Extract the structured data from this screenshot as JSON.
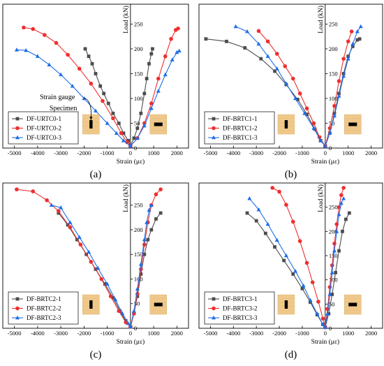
{
  "colors": {
    "series1": "#4d4d4d",
    "series2": "#ef2f2f",
    "series3": "#1e6ee8",
    "specimen_fill": "#efc98b",
    "specimen_gauge": "#000000"
  },
  "chart_data": [
    {
      "type": "line",
      "panel_label": "(a)",
      "xlabel": "Strain (με)",
      "ylabel": "Load (kN)",
      "xlim": [
        -5500,
        2500
      ],
      "ylim": [
        0,
        290
      ],
      "xticks": [
        "-5000",
        "-4000",
        "-3000",
        "-2000",
        "-1000",
        "0",
        "1000",
        "2000"
      ],
      "yticks": [
        "0",
        "50",
        "100",
        "150",
        "200",
        "250"
      ],
      "legend_position": "bottom-left",
      "annotations": [
        "Strain gauge",
        "Specimen"
      ],
      "series": [
        {
          "name": "DF-URTC0-1",
          "marker": "square",
          "left": [
            [
              -1950,
              200
            ],
            [
              -1800,
              185
            ],
            [
              -1650,
              170
            ],
            [
              -1500,
              150
            ],
            [
              -1300,
              125
            ],
            [
              -1150,
              110
            ],
            [
              -950,
              90
            ],
            [
              -750,
              70
            ],
            [
              -500,
              50
            ],
            [
              -300,
              30
            ],
            [
              -100,
              15
            ],
            [
              0,
              5
            ]
          ],
          "right": [
            [
              0,
              5
            ],
            [
              150,
              20
            ],
            [
              300,
              40
            ],
            [
              450,
              70
            ],
            [
              600,
              110
            ],
            [
              700,
              140
            ],
            [
              800,
              170
            ],
            [
              900,
              190
            ],
            [
              950,
              200
            ]
          ]
        },
        {
          "name": "DF-URTC0-2",
          "marker": "circle",
          "left": [
            [
              -4600,
              243
            ],
            [
              -4200,
              240
            ],
            [
              -3700,
              228
            ],
            [
              -3200,
              212
            ],
            [
              -2700,
              188
            ],
            [
              -2200,
              160
            ],
            [
              -1700,
              130
            ],
            [
              -1200,
              95
            ],
            [
              -750,
              60
            ],
            [
              -400,
              30
            ],
            [
              -150,
              12
            ],
            [
              0,
              4
            ]
          ],
          "right": [
            [
              0,
              4
            ],
            [
              300,
              20
            ],
            [
              600,
              50
            ],
            [
              900,
              90
            ],
            [
              1200,
              140
            ],
            [
              1500,
              185
            ],
            [
              1750,
              220
            ],
            [
              1950,
              238
            ],
            [
              2050,
              241
            ]
          ]
        },
        {
          "name": "DF-URTC0-3",
          "marker": "triangle",
          "left": [
            [
              -4900,
              198
            ],
            [
              -4500,
              197
            ],
            [
              -4000,
              185
            ],
            [
              -3500,
              168
            ],
            [
              -3000,
              148
            ],
            [
              -2500,
              125
            ],
            [
              -2000,
              100
            ],
            [
              -1500,
              75
            ],
            [
              -1000,
              50
            ],
            [
              -600,
              30
            ],
            [
              -300,
              15
            ],
            [
              0,
              4
            ]
          ],
          "right": [
            [
              0,
              4
            ],
            [
              300,
              20
            ],
            [
              600,
              45
            ],
            [
              900,
              80
            ],
            [
              1200,
              115
            ],
            [
              1500,
              148
            ],
            [
              1800,
              178
            ],
            [
              2000,
              193
            ],
            [
              2100,
              196
            ]
          ]
        }
      ]
    },
    {
      "type": "line",
      "panel_label": "(b)",
      "xlabel": "Strain (με)",
      "ylabel": "Load (kN)",
      "xlim": [
        -5500,
        2500
      ],
      "ylim": [
        0,
        290
      ],
      "xticks": [
        "-5000",
        "-4000",
        "-3000",
        "-2000",
        "-1000",
        "0",
        "1000",
        "2000"
      ],
      "yticks": [
        "0",
        "50",
        "100",
        "150",
        "200",
        "250"
      ],
      "legend_position": "bottom-left",
      "series": [
        {
          "name": "DF-BRTC1-1",
          "marker": "square",
          "left": [
            [
              -5200,
              220
            ],
            [
              -4300,
              215
            ],
            [
              -3500,
              202
            ],
            [
              -2800,
              180
            ],
            [
              -2200,
              155
            ],
            [
              -1700,
              128
            ],
            [
              -1200,
              98
            ],
            [
              -800,
              68
            ],
            [
              -450,
              38
            ],
            [
              -200,
              15
            ],
            [
              0,
              4
            ]
          ],
          "right": [
            [
              0,
              4
            ],
            [
              200,
              30
            ],
            [
              400,
              70
            ],
            [
              600,
              110
            ],
            [
              800,
              150
            ],
            [
              1000,
              185
            ],
            [
              1200,
              205
            ],
            [
              1400,
              218
            ],
            [
              1500,
              220
            ]
          ]
        },
        {
          "name": "DF-BRTC1-2",
          "marker": "circle",
          "left": [
            [
              -2900,
              236
            ],
            [
              -2500,
              215
            ],
            [
              -2100,
              190
            ],
            [
              -1750,
              165
            ],
            [
              -1400,
              140
            ],
            [
              -1100,
              110
            ],
            [
              -800,
              80
            ],
            [
              -500,
              50
            ],
            [
              -250,
              22
            ],
            [
              0,
              4
            ]
          ],
          "right": [
            [
              0,
              4
            ],
            [
              200,
              40
            ],
            [
              400,
              85
            ],
            [
              600,
              135
            ],
            [
              800,
              180
            ],
            [
              1000,
              215
            ],
            [
              1150,
              235
            ]
          ]
        },
        {
          "name": "DF-BRTC1-3",
          "marker": "triangle",
          "left": [
            [
              -3900,
              245
            ],
            [
              -3400,
              235
            ],
            [
              -2900,
              210
            ],
            [
              -2500,
              185
            ],
            [
              -2100,
              160
            ],
            [
              -1700,
              130
            ],
            [
              -1300,
              100
            ],
            [
              -900,
              70
            ],
            [
              -500,
              40
            ],
            [
              -200,
              15
            ],
            [
              0,
              4
            ]
          ],
          "right": [
            [
              0,
              4
            ],
            [
              200,
              30
            ],
            [
              400,
              65
            ],
            [
              600,
              105
            ],
            [
              800,
              145
            ],
            [
              1000,
              180
            ],
            [
              1200,
              210
            ],
            [
              1400,
              235
            ],
            [
              1550,
              245
            ]
          ]
        }
      ]
    },
    {
      "type": "line",
      "panel_label": "(c)",
      "xlabel": "Strain (με)",
      "ylabel": "Load (kN)",
      "xlim": [
        -5500,
        2500
      ],
      "ylim": [
        0,
        295
      ],
      "xticks": [
        "-5000",
        "-4000",
        "-3000",
        "-2000",
        "-1000",
        "0",
        "1000",
        "2000"
      ],
      "yticks": [
        "0",
        "50",
        "100",
        "150",
        "200",
        "250"
      ],
      "legend_position": "bottom-left",
      "series": [
        {
          "name": "DF-BRTC2-1",
          "marker": "square",
          "left": [
            [
              -3100,
              234
            ],
            [
              -2700,
              210
            ],
            [
              -2300,
              180
            ],
            [
              -1900,
              150
            ],
            [
              -1500,
              120
            ],
            [
              -1100,
              90
            ],
            [
              -750,
              62
            ],
            [
              -450,
              35
            ],
            [
              -200,
              15
            ],
            [
              0,
              3
            ]
          ],
          "right": [
            [
              0,
              3
            ],
            [
              150,
              30
            ],
            [
              300,
              65
            ],
            [
              450,
              110
            ],
            [
              600,
              150
            ],
            [
              750,
              180
            ],
            [
              900,
              200
            ],
            [
              1100,
              222
            ],
            [
              1300,
              234
            ]
          ]
        },
        {
          "name": "DF-BRTC2-2",
          "marker": "circle",
          "left": [
            [
              -4900,
              282
            ],
            [
              -4200,
              278
            ],
            [
              -3600,
              260
            ],
            [
              -3100,
              238
            ],
            [
              -2600,
              205
            ],
            [
              -2150,
              170
            ],
            [
              -1700,
              135
            ],
            [
              -1250,
              100
            ],
            [
              -850,
              65
            ],
            [
              -500,
              35
            ],
            [
              -200,
              12
            ],
            [
              0,
              3
            ]
          ],
          "right": [
            [
              0,
              3
            ],
            [
              150,
              30
            ],
            [
              300,
              70
            ],
            [
              450,
              120
            ],
            [
              600,
              170
            ],
            [
              750,
              215
            ],
            [
              900,
              250
            ],
            [
              1100,
              272
            ],
            [
              1300,
              282
            ]
          ]
        },
        {
          "name": "DF-BRTC2-3",
          "marker": "triangle",
          "left": [
            [
              -3400,
              250
            ],
            [
              -3000,
              245
            ],
            [
              -2600,
              215
            ],
            [
              -2200,
              185
            ],
            [
              -1800,
              155
            ],
            [
              -1400,
              122
            ],
            [
              -1000,
              90
            ],
            [
              -650,
              58
            ],
            [
              -350,
              30
            ],
            [
              -100,
              10
            ],
            [
              0,
              3
            ]
          ],
          "right": [
            [
              0,
              3
            ],
            [
              150,
              35
            ],
            [
              300,
              80
            ],
            [
              450,
              130
            ],
            [
              600,
              180
            ],
            [
              700,
              215
            ],
            [
              800,
              240
            ],
            [
              900,
              250
            ]
          ]
        }
      ]
    },
    {
      "type": "line",
      "panel_label": "(d)",
      "xlabel": "Strain (με)",
      "ylabel": "Load (kN)",
      "xlim": [
        -5500,
        2500
      ],
      "ylim": [
        0,
        300
      ],
      "xticks": [
        "-5000",
        "-4000",
        "-3000",
        "-2000",
        "-1000",
        "0",
        "1000",
        "2000"
      ],
      "yticks": [
        "0",
        "50",
        "100",
        "150",
        "200",
        "250"
      ],
      "legend_position": "bottom-left",
      "series": [
        {
          "name": "DF-BRTC3-1",
          "marker": "square",
          "left": [
            [
              -3400,
              238
            ],
            [
              -3000,
              222
            ],
            [
              -2600,
              196
            ],
            [
              -2200,
              168
            ],
            [
              -1800,
              140
            ],
            [
              -1400,
              112
            ],
            [
              -1000,
              82
            ],
            [
              -650,
              54
            ],
            [
              -350,
              28
            ],
            [
              -100,
              8
            ],
            [
              0,
              2
            ]
          ],
          "right": [
            [
              0,
              2
            ],
            [
              150,
              30
            ],
            [
              300,
              70
            ],
            [
              450,
              115
            ],
            [
              600,
              160
            ],
            [
              750,
              200
            ],
            [
              900,
              225
            ],
            [
              1050,
              238
            ]
          ]
        },
        {
          "name": "DF-BRTC3-2",
          "marker": "circle",
          "left": [
            [
              -2300,
              290
            ],
            [
              -2000,
              282
            ],
            [
              -1700,
              255
            ],
            [
              -1400,
              220
            ],
            [
              -1100,
              180
            ],
            [
              -800,
              135
            ],
            [
              -550,
              95
            ],
            [
              -300,
              55
            ],
            [
              -100,
              20
            ],
            [
              0,
              2
            ]
          ],
          "right": [
            [
              0,
              2
            ],
            [
              100,
              40
            ],
            [
              200,
              85
            ],
            [
              300,
              130
            ],
            [
              400,
              175
            ],
            [
              500,
              215
            ],
            [
              600,
              250
            ],
            [
              700,
              275
            ],
            [
              800,
              290
            ]
          ]
        },
        {
          "name": "DF-BRTC3-3",
          "marker": "triangle",
          "left": [
            [
              -3300,
              268
            ],
            [
              -2900,
              245
            ],
            [
              -2500,
              215
            ],
            [
              -2100,
              182
            ],
            [
              -1700,
              150
            ],
            [
              -1300,
              118
            ],
            [
              -950,
              88
            ],
            [
              -650,
              58
            ],
            [
              -350,
              30
            ],
            [
              -100,
              8
            ],
            [
              0,
              2
            ]
          ],
          "right": [
            [
              0,
              2
            ],
            [
              100,
              30
            ],
            [
              200,
              70
            ],
            [
              300,
              115
            ],
            [
              400,
              160
            ],
            [
              500,
              200
            ],
            [
              600,
              235
            ],
            [
              700,
              258
            ],
            [
              800,
              268
            ]
          ]
        }
      ]
    }
  ]
}
